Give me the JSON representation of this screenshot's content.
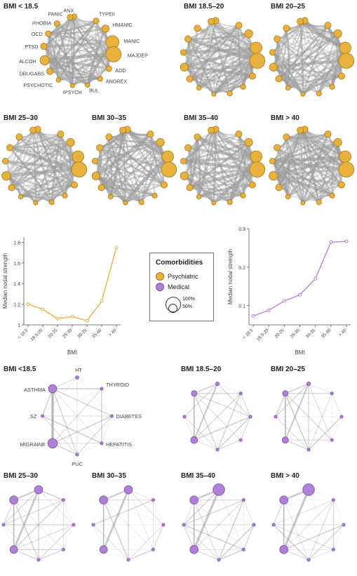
{
  "colors": {
    "psych": "#E8B13E",
    "psych_stroke": "#A87A1A",
    "med": "#B07FD6",
    "med_stroke": "#7A52A8",
    "edge": "#9a9a9a"
  },
  "psych_networks": {
    "nodes": [
      "ANX",
      "TYPEII",
      "HMANIC",
      "MANIC",
      "MAJDEP",
      "ADD",
      "ANOREX",
      "BUL",
      "IPSYCH",
      "PSYCHOTIC",
      "DRUGABS",
      "ALCOH",
      "PTSD",
      "OCD",
      "PHOBIA",
      "PANIC"
    ],
    "panels": [
      {
        "title": "BMI < 18.5",
        "sizes": [
          0.15,
          0.2,
          0.3,
          0.7,
          0.85,
          0.2,
          0.15,
          0.12,
          0.1,
          0.12,
          0.25,
          0.45,
          0.25,
          0.2,
          0.2,
          0.2
        ],
        "labeled": true
      },
      {
        "title": "BMI 18.5–20",
        "sizes": [
          0.25,
          0.25,
          0.35,
          0.6,
          0.85,
          0.25,
          0.15,
          0.15,
          0.1,
          0.12,
          0.25,
          0.35,
          0.2,
          0.25,
          0.25,
          0.25
        ],
        "labeled": false
      },
      {
        "title": "BMI 20–25",
        "sizes": [
          0.25,
          0.25,
          0.35,
          0.6,
          0.85,
          0.25,
          0.15,
          0.15,
          0.1,
          0.12,
          0.25,
          0.35,
          0.2,
          0.25,
          0.25,
          0.25
        ],
        "labeled": false
      },
      {
        "title": "BMI 25–30",
        "sizes": [
          0.25,
          0.25,
          0.35,
          0.6,
          0.85,
          0.25,
          0.15,
          0.15,
          0.1,
          0.12,
          0.25,
          0.4,
          0.2,
          0.25,
          0.25,
          0.25
        ],
        "labeled": false
      },
      {
        "title": "BMI 30–35",
        "sizes": [
          0.25,
          0.25,
          0.35,
          0.6,
          0.85,
          0.25,
          0.15,
          0.15,
          0.1,
          0.12,
          0.25,
          0.35,
          0.2,
          0.25,
          0.25,
          0.25
        ],
        "labeled": false
      },
      {
        "title": "BMI 35–40",
        "sizes": [
          0.25,
          0.25,
          0.35,
          0.6,
          0.85,
          0.25,
          0.15,
          0.15,
          0.1,
          0.12,
          0.25,
          0.35,
          0.2,
          0.25,
          0.25,
          0.25
        ],
        "labeled": false
      },
      {
        "title": "BMI > 40",
        "sizes": [
          0.25,
          0.25,
          0.35,
          0.6,
          0.85,
          0.25,
          0.15,
          0.15,
          0.1,
          0.12,
          0.25,
          0.4,
          0.2,
          0.25,
          0.25,
          0.25
        ],
        "labeled": false
      }
    ]
  },
  "med_networks": {
    "nodes": [
      "HT",
      "THYROID",
      "DIABETES",
      "HEPATITIS",
      "PUC",
      "MIGRAINE",
      "SZ",
      "ASTHMA"
    ],
    "panels": [
      {
        "title": "BMI <18.5",
        "sizes": [
          0.08,
          0.05,
          0.05,
          0.05,
          0.05,
          0.55,
          0.05,
          0.45
        ],
        "labeled": true
      },
      {
        "title": "BMI 18.5–20",
        "sizes": [
          0.1,
          0.05,
          0.05,
          0.05,
          0.05,
          0.35,
          0.05,
          0.25
        ],
        "labeled": false
      },
      {
        "title": "BMI 20–25",
        "sizes": [
          0.1,
          0.05,
          0.05,
          0.05,
          0.05,
          0.3,
          0.05,
          0.25
        ],
        "labeled": false
      },
      {
        "title": "BMI 25–30",
        "sizes": [
          0.45,
          0.05,
          0.05,
          0.05,
          0.05,
          0.4,
          0.05,
          0.45
        ],
        "labeled": false
      },
      {
        "title": "BMI 30–35",
        "sizes": [
          0.45,
          0.05,
          0.05,
          0.05,
          0.05,
          0.4,
          0.05,
          0.45
        ],
        "labeled": false
      },
      {
        "title": "BMI 35–40",
        "sizes": [
          0.7,
          0.05,
          0.05,
          0.05,
          0.05,
          0.45,
          0.05,
          0.45
        ],
        "labeled": false
      },
      {
        "title": "BMI > 40",
        "sizes": [
          0.7,
          0.05,
          0.05,
          0.05,
          0.05,
          0.45,
          0.05,
          0.45
        ],
        "labeled": false
      }
    ]
  },
  "chart_data": [
    {
      "type": "line",
      "categories": [
        "< 18.5",
        "18.5-20",
        "20-25",
        "25-30",
        "30-35",
        "35-40",
        "> 40"
      ],
      "series": [
        {
          "values": [
            1.2,
            1.15,
            1.06,
            1.08,
            1.04,
            1.23,
            1.75
          ]
        }
      ],
      "xlabel": "BMI",
      "ylabel": "Median nodal strength",
      "ylim": [
        1.0,
        1.85
      ],
      "yticks": [
        1.0,
        1.2,
        1.4,
        1.6,
        1.8
      ],
      "ytick_labels": [
        "1",
        "1.2",
        "1.4",
        "1.6",
        "1.8"
      ],
      "color": "#E8B13E"
    },
    {
      "type": "line",
      "categories": [
        "< 18.5",
        "18.5-20",
        "20-25",
        "25-30",
        "30-35",
        "35-40",
        "> 40"
      ],
      "series": [
        {
          "values": [
            0.073,
            0.088,
            0.112,
            0.128,
            0.17,
            0.265,
            0.267
          ]
        }
      ],
      "xlabel": "BMI",
      "ylabel": "Median nodal strength",
      "ylim": [
        0.05,
        0.3
      ],
      "yticks": [
        0.1,
        0.2,
        0.3
      ],
      "ytick_labels": [
        "0.1",
        "0.2",
        "0.3"
      ],
      "color": "#B07FD6"
    }
  ],
  "legend": {
    "title": "Comorbidities",
    "items": [
      {
        "label": "Psychiatric",
        "color": "#E8B13E"
      },
      {
        "label": "Medical",
        "color": "#B07FD6"
      }
    ],
    "size_labels": [
      "100%",
      "50%"
    ]
  }
}
